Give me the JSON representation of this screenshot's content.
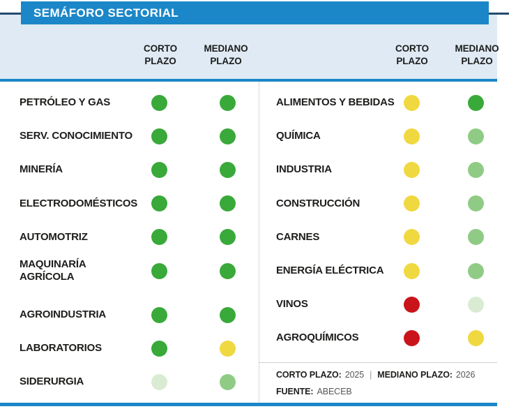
{
  "title": "SEMÁFORO SECTORIAL",
  "colors": {
    "brand_blue": "#1b87c8",
    "navy_rule": "#25496d",
    "header_band": "#dfeaf4",
    "text_dark": "#1d1d1b",
    "text_gray": "#56575b"
  },
  "status_colors": {
    "green": "#39a939",
    "light_green": "#90cb85",
    "pale_green": "#d9ecd3",
    "yellow": "#f0d841",
    "red": "#c9141b"
  },
  "column_headers": {
    "corto": "CORTO\nPLAZO",
    "mediano": "MEDIANO\nPLAZO"
  },
  "chart_data": {
    "type": "table",
    "title": "SEMÁFORO SECTORIAL",
    "columns": [
      "CORTO PLAZO",
      "MEDIANO PLAZO"
    ],
    "status_scale": [
      "green",
      "light_green",
      "pale_green",
      "yellow",
      "red"
    ],
    "panels": [
      {
        "rows": [
          {
            "sector": "PETRÓLEO Y GAS",
            "corto": "green",
            "mediano": "green"
          },
          {
            "sector": "SERV. CONOCIMIENTO",
            "corto": "green",
            "mediano": "green"
          },
          {
            "sector": "MINERÍA",
            "corto": "green",
            "mediano": "green"
          },
          {
            "sector": "ELECTRODOMÉSTICOS",
            "corto": "green",
            "mediano": "green"
          },
          {
            "sector": "AUTOMOTRIZ",
            "corto": "green",
            "mediano": "green"
          },
          {
            "sector": "MAQUINARÍA\nAGRÍCOLA",
            "corto": "green",
            "mediano": "green"
          },
          {
            "sector": "AGROINDUSTRIA",
            "corto": "green",
            "mediano": "green"
          },
          {
            "sector": "LABORATORIOS",
            "corto": "green",
            "mediano": "yellow"
          },
          {
            "sector": "SIDERURGIA",
            "corto": "pale_green",
            "mediano": "light_green"
          }
        ]
      },
      {
        "rows": [
          {
            "sector": "ALIMENTOS Y BEBIDAS",
            "corto": "yellow",
            "mediano": "green"
          },
          {
            "sector": "QUÍMICA",
            "corto": "yellow",
            "mediano": "light_green"
          },
          {
            "sector": "INDUSTRIA",
            "corto": "yellow",
            "mediano": "light_green"
          },
          {
            "sector": "CONSTRUCCIÓN",
            "corto": "yellow",
            "mediano": "light_green"
          },
          {
            "sector": "CARNES",
            "corto": "yellow",
            "mediano": "light_green"
          },
          {
            "sector": "ENERGÍA ELÉCTRICA",
            "corto": "yellow",
            "mediano": "light_green"
          },
          {
            "sector": "VINOS",
            "corto": "red",
            "mediano": "pale_green"
          },
          {
            "sector": "AGROQUÍMICOS",
            "corto": "red",
            "mediano": "yellow"
          }
        ]
      }
    ],
    "periods": {
      "corto_plazo": "2025",
      "mediano_plazo": "2026"
    },
    "source": "ABECEB"
  },
  "footer": {
    "corto_label": "CORTO PLAZO:",
    "corto_value": "2025",
    "separator": "|",
    "mediano_label": "MEDIANO PLAZO:",
    "mediano_value": "2026",
    "fuente_label": "FUENTE:",
    "fuente_value": "ABECEB"
  }
}
